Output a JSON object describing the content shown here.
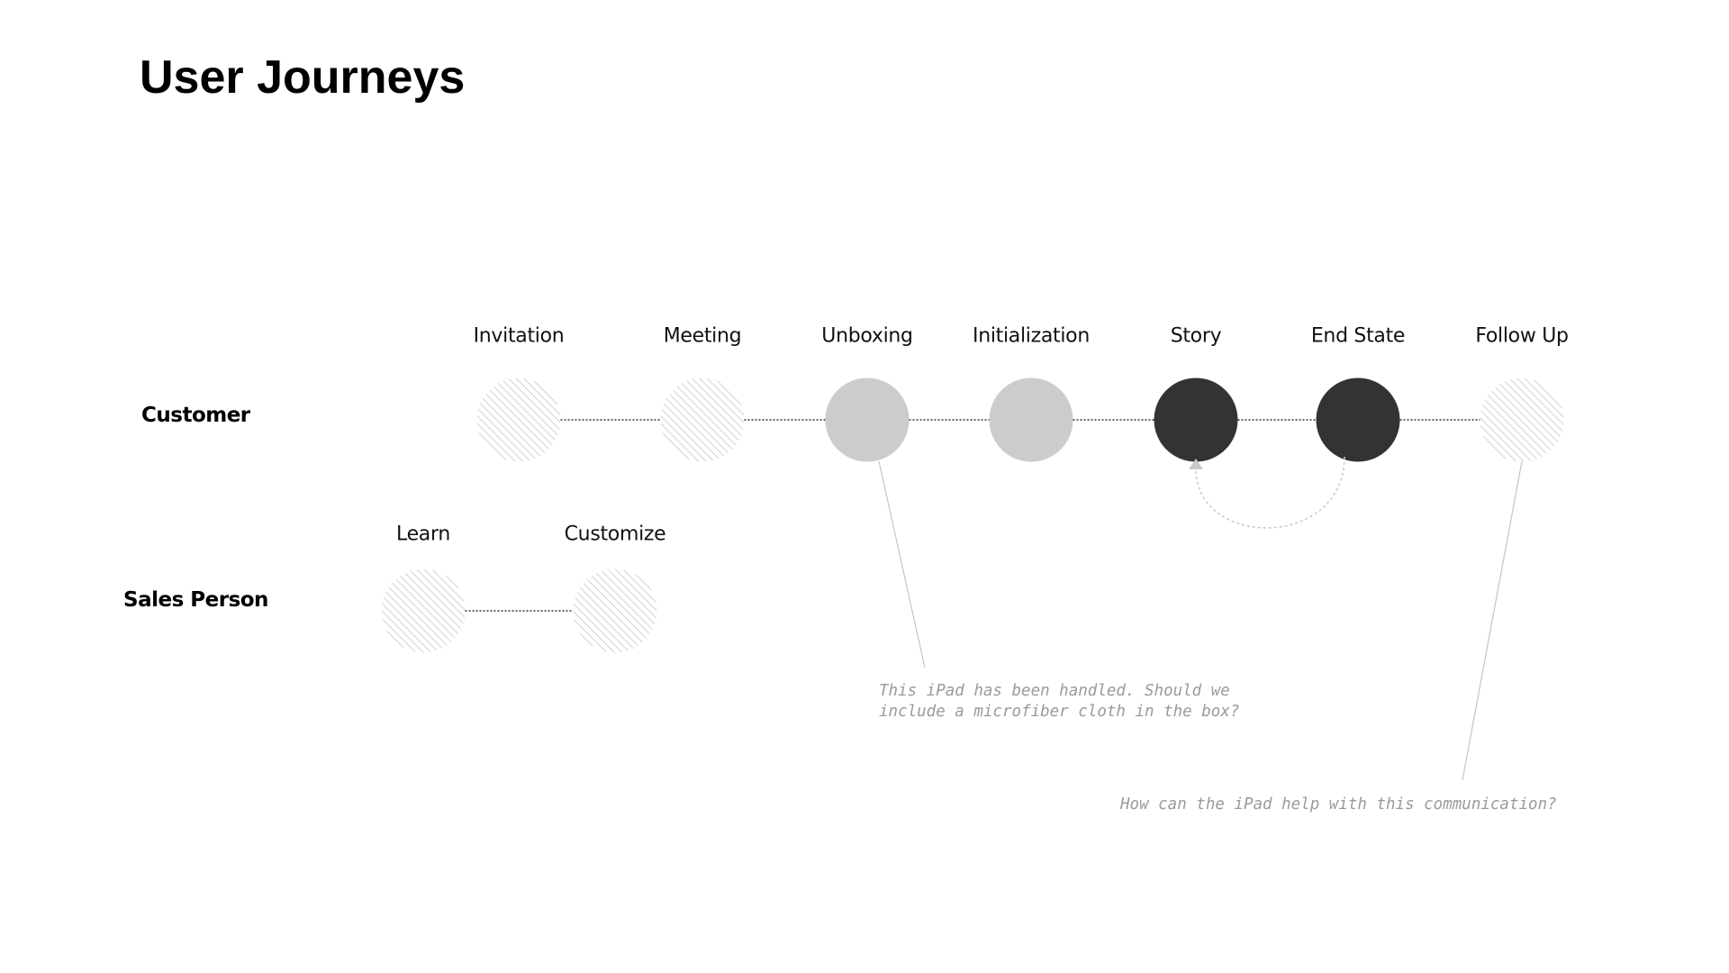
{
  "title": "User Journeys",
  "colors": {
    "dark": "#333333",
    "light": "#cccccc",
    "hatch": "#b8b8b8",
    "connector": "#333333",
    "annotation": "#9a9a9a"
  },
  "rows": [
    {
      "label": "Customer",
      "nodes": [
        {
          "label": "Invitation",
          "style": "hatched"
        },
        {
          "label": "Meeting",
          "style": "hatched"
        },
        {
          "label": "Unboxing",
          "style": "light"
        },
        {
          "label": "Initialization",
          "style": "light"
        },
        {
          "label": "Story",
          "style": "dark"
        },
        {
          "label": "End State",
          "style": "dark"
        },
        {
          "label": "Follow Up",
          "style": "hatched"
        }
      ]
    },
    {
      "label": "Sales Person",
      "nodes": [
        {
          "label": "Learn",
          "style": "hatched"
        },
        {
          "label": "Customize",
          "style": "hatched"
        }
      ]
    }
  ],
  "loop": {
    "from": "End State",
    "to": "Story"
  },
  "annotations": [
    {
      "target": "Unboxing",
      "text": "This iPad has been handled. Should we\ninclude a microfiber cloth in the box?"
    },
    {
      "target": "Follow Up",
      "text": "How can the iPad help with this communication?"
    }
  ]
}
